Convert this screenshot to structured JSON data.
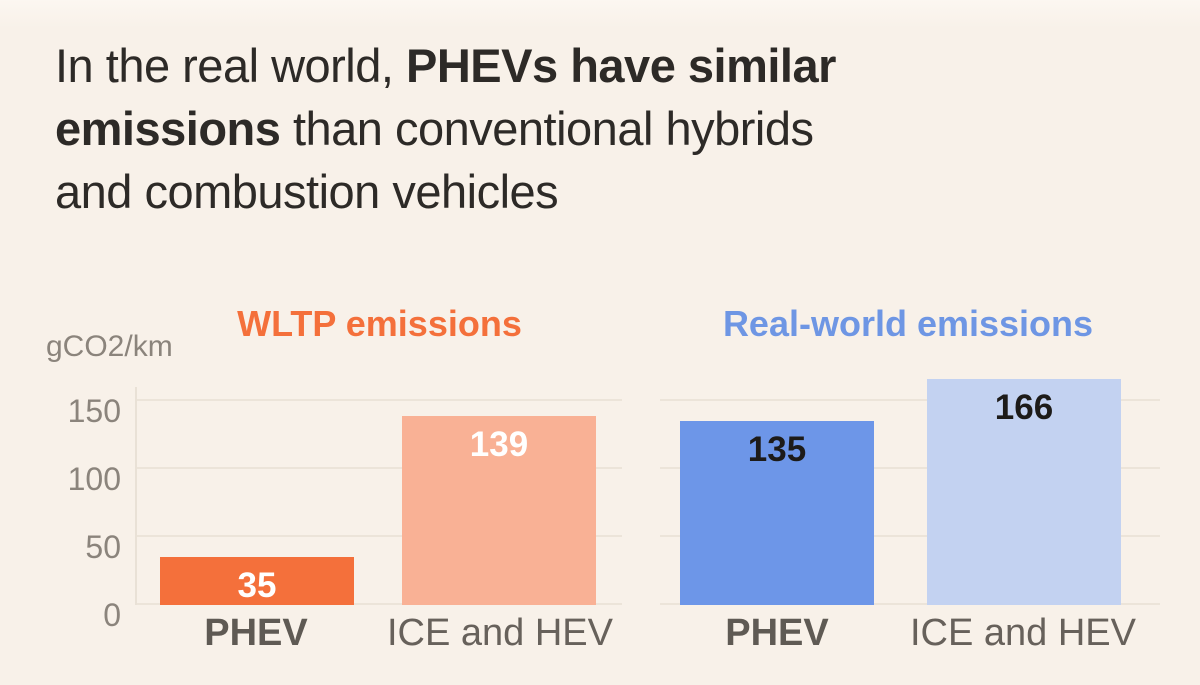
{
  "title": {
    "line1_normal": "In the real world, ",
    "line1_bold": "PHEVs have similar",
    "line2_bold": "emissions",
    "line2_normal": " than conventional hybrids",
    "line3_normal": "and combustion vehicles"
  },
  "axis": {
    "unit_label": "gCO2/km",
    "ticks": [
      "150",
      "100",
      "50",
      "0"
    ]
  },
  "chart_data": {
    "type": "bar",
    "title": "In the real world, PHEVs have similar emissions than conventional hybrids and combustion vehicles",
    "ylabel": "gCO2/km",
    "ylim": [
      0,
      175
    ],
    "yticks": [
      0,
      50,
      100,
      150
    ],
    "grid": true,
    "legend": "none",
    "categories": [
      "PHEV",
      "ICE and HEV"
    ],
    "groups": [
      {
        "title": "WLTP emissions",
        "title_color": "#f4703b",
        "series": [
          {
            "category": "PHEV",
            "value": 35,
            "bar_color": "#f4703b",
            "label_color": "#ffffff"
          },
          {
            "category": "ICE and HEV",
            "value": 139,
            "bar_color": "#f9b195",
            "label_color": "#ffffff"
          }
        ]
      },
      {
        "title": "Real-world emissions",
        "title_color": "#6e96e4",
        "series": [
          {
            "category": "PHEV",
            "value": 135,
            "bar_color": "#6d96e8",
            "label_color": "#1d1b19"
          },
          {
            "category": "ICE and HEV",
            "value": 166,
            "bar_color": "#c3d2f1",
            "label_color": "#1d1b19"
          }
        ]
      }
    ],
    "colors": {
      "background": "#f8f1e9",
      "grid": "#ece4d9",
      "axis_text": "#8b847c",
      "category_text": "#67615b",
      "title_text": "#2d2a27"
    }
  }
}
